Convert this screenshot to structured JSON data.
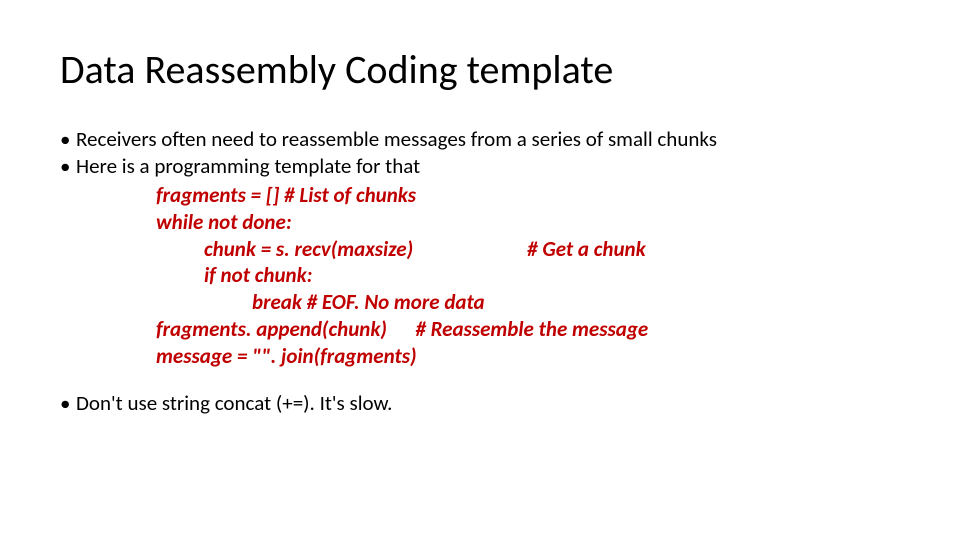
{
  "title": "Data Reassembly Coding template",
  "bullets": {
    "b1": "Receivers often need to reassemble messages from a series of small chunks",
    "b2": "Here is a programming template for that",
    "b3": "Don't use string concat (+=). It's slow."
  },
  "code": {
    "l1": "fragments = [] # List of chunks",
    "l2": "while not done:",
    "l3": "chunk = s. recv(maxsize)                        # Get a chunk",
    "l4": "if not chunk:",
    "l5": "break # EOF. No more data",
    "l6": "fragments. append(chunk)      # Reassemble the message",
    "l7": "message = \"\". join(fragments)"
  },
  "colors": {
    "code_color": "#c00000",
    "text_color": "#000000",
    "background": "#ffffff"
  },
  "typography": {
    "title_fontsize": 40,
    "body_fontsize": 21,
    "code_weight": "bold",
    "code_style": "italic",
    "font_family": "Calibri"
  }
}
